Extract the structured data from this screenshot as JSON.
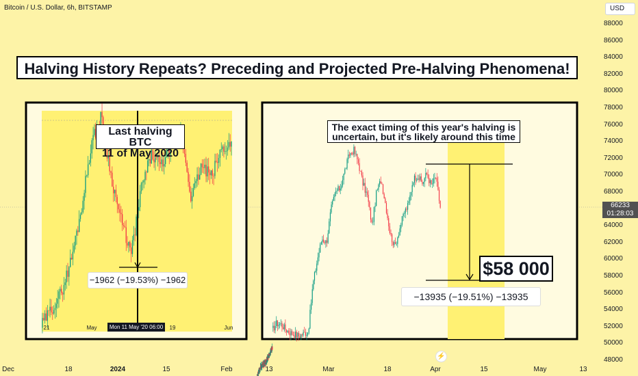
{
  "header": {
    "symbol": "Bitcoin / U.S. Dollar, 6h, BITSTAMP",
    "currency": "USD"
  },
  "title": "Halving History Repeats? Preceding and Projected Pre-Halving Phenomena!",
  "annotations": {
    "last_halving_line1": "Last halving BTC",
    "last_halving_line2": "11 of May 2020",
    "timing_line1": "The exact timing of this year's halving is",
    "timing_line2": "uncertain, but it's likely around this time",
    "target": "$58 000",
    "measure_left": "−1962 (−19.53%) −1962",
    "measure_right": "−13935 (−19.51%) −13935"
  },
  "inner_chart": {
    "x_labels": [
      "21",
      "May",
      "19",
      "Jun"
    ],
    "crosshair_date": "Mon 11 May '20   06:00"
  },
  "price_tag": {
    "price": "66233",
    "countdown": "01:28:03"
  },
  "icons": {
    "event": "lightning-icon"
  },
  "colors": {
    "background": "#fdf3a7",
    "panel": "#fffbe0",
    "highlight": "#fff173",
    "up": "#089981",
    "down": "#f23645"
  },
  "chart_data": {
    "type": "candlestick",
    "y_axis": {
      "ticks": [
        48000,
        50000,
        52000,
        54000,
        56000,
        58000,
        60000,
        62000,
        64000,
        66000,
        68000,
        70000,
        72000,
        74000,
        76000,
        78000,
        80000,
        82000,
        84000,
        86000,
        88000
      ],
      "range": [
        47500,
        89000
      ]
    },
    "x_axis": {
      "ticks": [
        "Dec",
        "18",
        "2024",
        "15",
        "Feb",
        "13",
        "Mar",
        "18",
        "Apr",
        "15",
        "May",
        "13"
      ]
    },
    "last_price": 66233,
    "projected_drop": {
      "from": 71935,
      "to": 58000,
      "change": -13935,
      "percent": -19.51
    },
    "previous_drop": {
      "change": -1962,
      "percent": -19.53
    },
    "main_series_close_path": [
      51500,
      52400,
      52300,
      51700,
      51300,
      51100,
      50900,
      51200,
      51400,
      57000,
      60000,
      62500,
      62000,
      66000,
      68000,
      68500,
      70500,
      72500,
      73000,
      71500,
      69000,
      67500,
      64000,
      68000,
      69500,
      66500,
      63000,
      61500,
      63500,
      65500,
      66500,
      69500,
      70000,
      69000,
      70200,
      68800,
      69800,
      66200
    ]
  }
}
